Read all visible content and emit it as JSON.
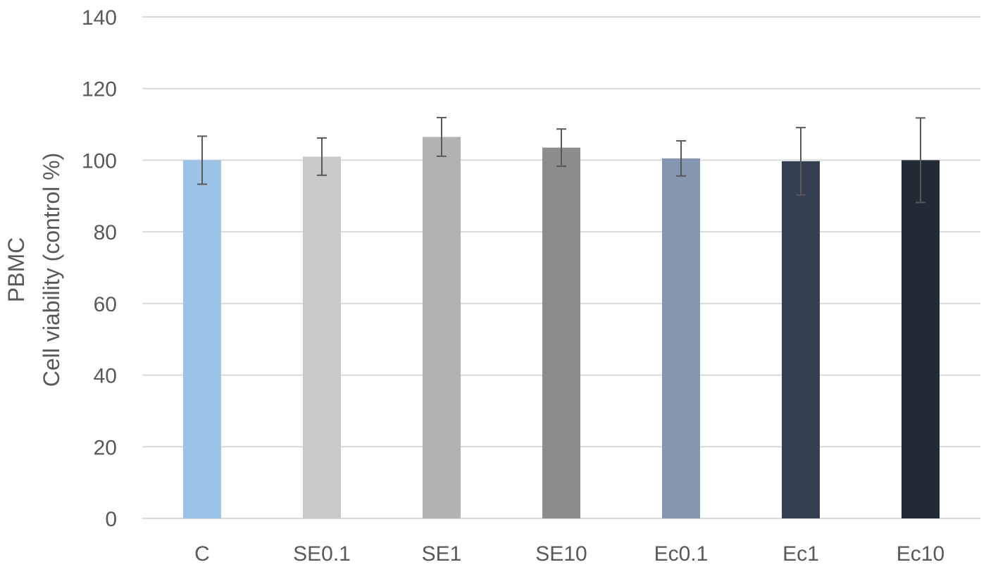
{
  "chart_data": {
    "type": "bar",
    "title": "",
    "xlabel": "",
    "ylabel_lines": [
      "PBMC",
      "Cell viability (control %)"
    ],
    "categories": [
      "C",
      "SE0.1",
      "SE1",
      "SE10",
      "Ec0.1",
      "Ec1",
      "Ec10"
    ],
    "series": [
      {
        "values": [
          100,
          101,
          106.5,
          103.5,
          100.5,
          99.7,
          100
        ],
        "error": [
          6.7,
          5.2,
          5.4,
          5.2,
          4.9,
          9.4,
          11.8
        ],
        "colors": [
          "#9dc3e6",
          "#c9c9c9",
          "#b2b2b2",
          "#8c8c8c",
          "#8496b0",
          "#333f50",
          "#222a35"
        ]
      }
    ],
    "ylim": [
      0,
      140
    ],
    "yticks": [
      "0",
      "20",
      "40",
      "60",
      "80",
      "100",
      "120",
      "140"
    ],
    "grid": true,
    "legend": "none"
  }
}
